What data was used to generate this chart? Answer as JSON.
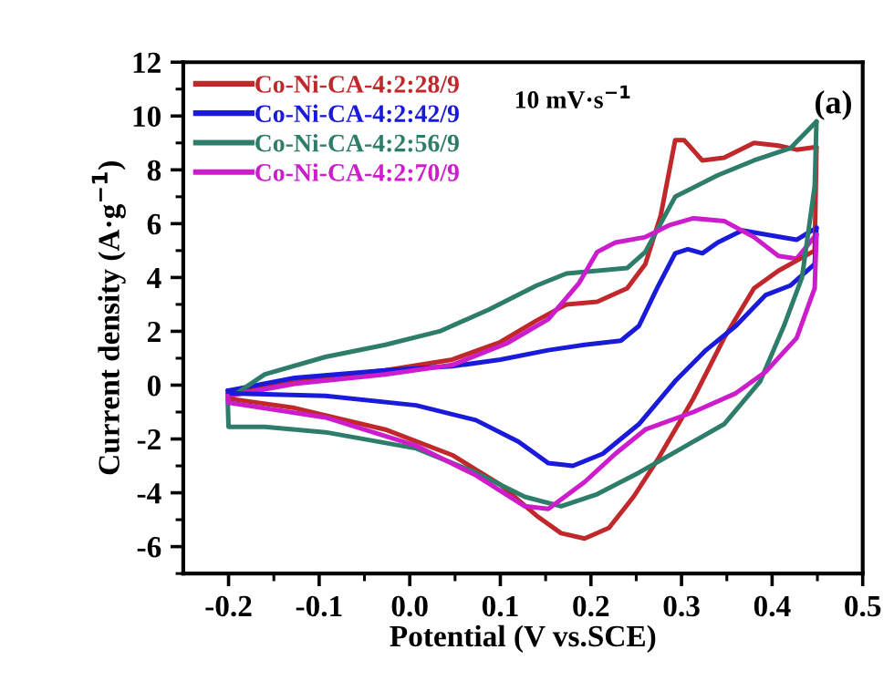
{
  "chart_data": {
    "type": "line",
    "xlabel": "Potential (V vs.SCE)",
    "ylabel": "Current density (A·g$^{−1}$)",
    "annotations": [
      "10 mV·s$^{−1}$",
      "(a)"
    ],
    "xlim": [
      -0.25,
      0.5
    ],
    "ylim": [
      -7,
      12
    ],
    "xticks": [
      -0.2,
      -0.1,
      {
        "value": 0,
        "label": "0.0"
      },
      0.1,
      0.2,
      0.3,
      0.4,
      0.5,
      {
        "value": -0.15,
        "label": null
      },
      {
        "value": -0.05,
        "label": null
      },
      {
        "value": 0.05,
        "label": null
      },
      {
        "value": 0.15,
        "label": null
      },
      {
        "value": 0.25,
        "label": null
      },
      {
        "value": 0.35,
        "label": null
      },
      {
        "value": 0.45,
        "label": null
      }
    ],
    "yticks": [
      -6,
      -4,
      -2,
      0,
      2,
      4,
      6,
      8,
      10,
      12,
      {
        "value": -7,
        "label": null
      },
      {
        "value": -5,
        "label": null
      },
      {
        "value": -3,
        "label": null
      },
      {
        "value": -1,
        "label": null
      },
      {
        "value": 1,
        "label": null
      },
      {
        "value": 3,
        "label": null
      },
      {
        "value": 5,
        "label": null
      },
      {
        "value": 7,
        "label": null
      },
      {
        "value": 9,
        "label": null
      },
      {
        "value": 11,
        "label": null
      }
    ],
    "grid": false,
    "legend": "top left",
    "marker": "none",
    "line_style": "solid",
    "series": [
      {
        "name": "Co-Ni-CA-4:2:28/9",
        "color": "#c0282b",
        "x": [
          -0.2,
          -0.127,
          -0.027,
          0.047,
          0.1,
          0.14,
          0.173,
          0.207,
          0.24,
          0.26,
          0.277,
          0.293,
          0.303,
          0.323,
          0.347,
          0.38,
          0.407,
          0.427,
          0.449
        ],
        "values": [
          -0.3,
          0.16,
          0.55,
          0.95,
          1.6,
          2.4,
          3.0,
          3.1,
          3.6,
          4.5,
          6.3,
          9.1,
          9.1,
          8.35,
          8.45,
          9.0,
          8.9,
          8.75,
          8.85
        ]
      },
      {
        "name": "Co-Ni-CA-4:2:42/9",
        "color": "#1a1adb",
        "x": [
          -0.2,
          -0.127,
          -0.027,
          0.047,
          0.1,
          0.153,
          0.193,
          0.233,
          0.253,
          0.273,
          0.293,
          0.307,
          0.323,
          0.34,
          0.367,
          0.393,
          0.427,
          0.449
        ],
        "values": [
          -0.2,
          0.27,
          0.55,
          0.7,
          0.95,
          1.3,
          1.5,
          1.65,
          2.2,
          3.6,
          4.9,
          5.05,
          4.9,
          5.3,
          5.75,
          5.6,
          5.4,
          5.85
        ]
      },
      {
        "name": "Co-Ni-CA-4:2:56/9",
        "color": "#2e7d6a",
        "x": [
          -0.2,
          -0.16,
          -0.093,
          -0.027,
          0.033,
          0.087,
          0.14,
          0.173,
          0.207,
          0.24,
          0.26,
          0.293,
          0.34,
          0.38,
          0.42,
          0.449
        ],
        "values": [
          -0.5,
          0.4,
          1.05,
          1.5,
          2.0,
          2.8,
          3.7,
          4.15,
          4.25,
          4.35,
          4.95,
          7.0,
          7.8,
          8.35,
          8.8,
          9.8
        ]
      },
      {
        "name": "Co-Ni-CA-4:2:70/9",
        "color": "#cc1ccc",
        "x": [
          -0.2,
          -0.127,
          -0.027,
          0.047,
          0.107,
          0.153,
          0.187,
          0.207,
          0.227,
          0.26,
          0.287,
          0.313,
          0.347,
          0.38,
          0.407,
          0.427,
          0.449
        ],
        "values": [
          -0.4,
          0.05,
          0.4,
          0.75,
          1.55,
          2.45,
          3.8,
          4.95,
          5.3,
          5.5,
          5.95,
          6.2,
          6.1,
          5.5,
          4.8,
          4.7,
          5.6
        ]
      },
      {
        "color": "#c0282b",
        "x": [
          -0.201,
          -0.2,
          -0.127,
          -0.027,
          0.047,
          0.1,
          0.14,
          0.167,
          0.193,
          0.22,
          0.247,
          0.273,
          0.313,
          0.347,
          0.38,
          0.407,
          0.447,
          0.449
        ],
        "values": [
          -0.3,
          -0.5,
          -0.85,
          -1.65,
          -2.6,
          -3.7,
          -4.85,
          -5.5,
          -5.7,
          -5.3,
          -4.15,
          -2.8,
          -0.5,
          1.75,
          3.6,
          4.25,
          5.0,
          8.85
        ]
      },
      {
        "color": "#1a1adb",
        "x": [
          -0.201,
          -0.2,
          -0.093,
          0.007,
          0.073,
          0.12,
          0.153,
          0.18,
          0.213,
          0.253,
          0.293,
          0.327,
          0.36,
          0.393,
          0.42,
          0.447,
          0.449
        ],
        "values": [
          -0.2,
          -0.3,
          -0.4,
          -0.75,
          -1.3,
          -2.1,
          -2.9,
          -3.0,
          -2.55,
          -1.45,
          0.15,
          1.3,
          2.2,
          3.35,
          3.7,
          4.5,
          5.85
        ]
      },
      {
        "color": "#2e7d6a",
        "x": [
          -0.201,
          -0.2,
          -0.16,
          -0.093,
          0.007,
          0.073,
          0.127,
          0.167,
          0.207,
          0.253,
          0.3,
          0.347,
          0.387,
          0.413,
          0.433,
          0.447,
          0.449
        ],
        "values": [
          -0.5,
          -1.55,
          -1.55,
          -1.75,
          -2.35,
          -3.25,
          -4.15,
          -4.5,
          -4.05,
          -3.25,
          -2.35,
          -1.45,
          0.15,
          2.2,
          4.0,
          7.4,
          9.8
        ]
      },
      {
        "color": "#cc1ccc",
        "x": [
          -0.201,
          -0.2,
          -0.093,
          0.007,
          0.073,
          0.127,
          0.153,
          0.193,
          0.227,
          0.26,
          0.313,
          0.36,
          0.393,
          0.427,
          0.447,
          0.449
        ],
        "values": [
          -0.4,
          -0.65,
          -1.2,
          -2.25,
          -3.35,
          -4.5,
          -4.6,
          -3.6,
          -2.55,
          -1.65,
          -1.0,
          -0.3,
          0.5,
          1.75,
          3.6,
          5.6
        ]
      }
    ]
  }
}
